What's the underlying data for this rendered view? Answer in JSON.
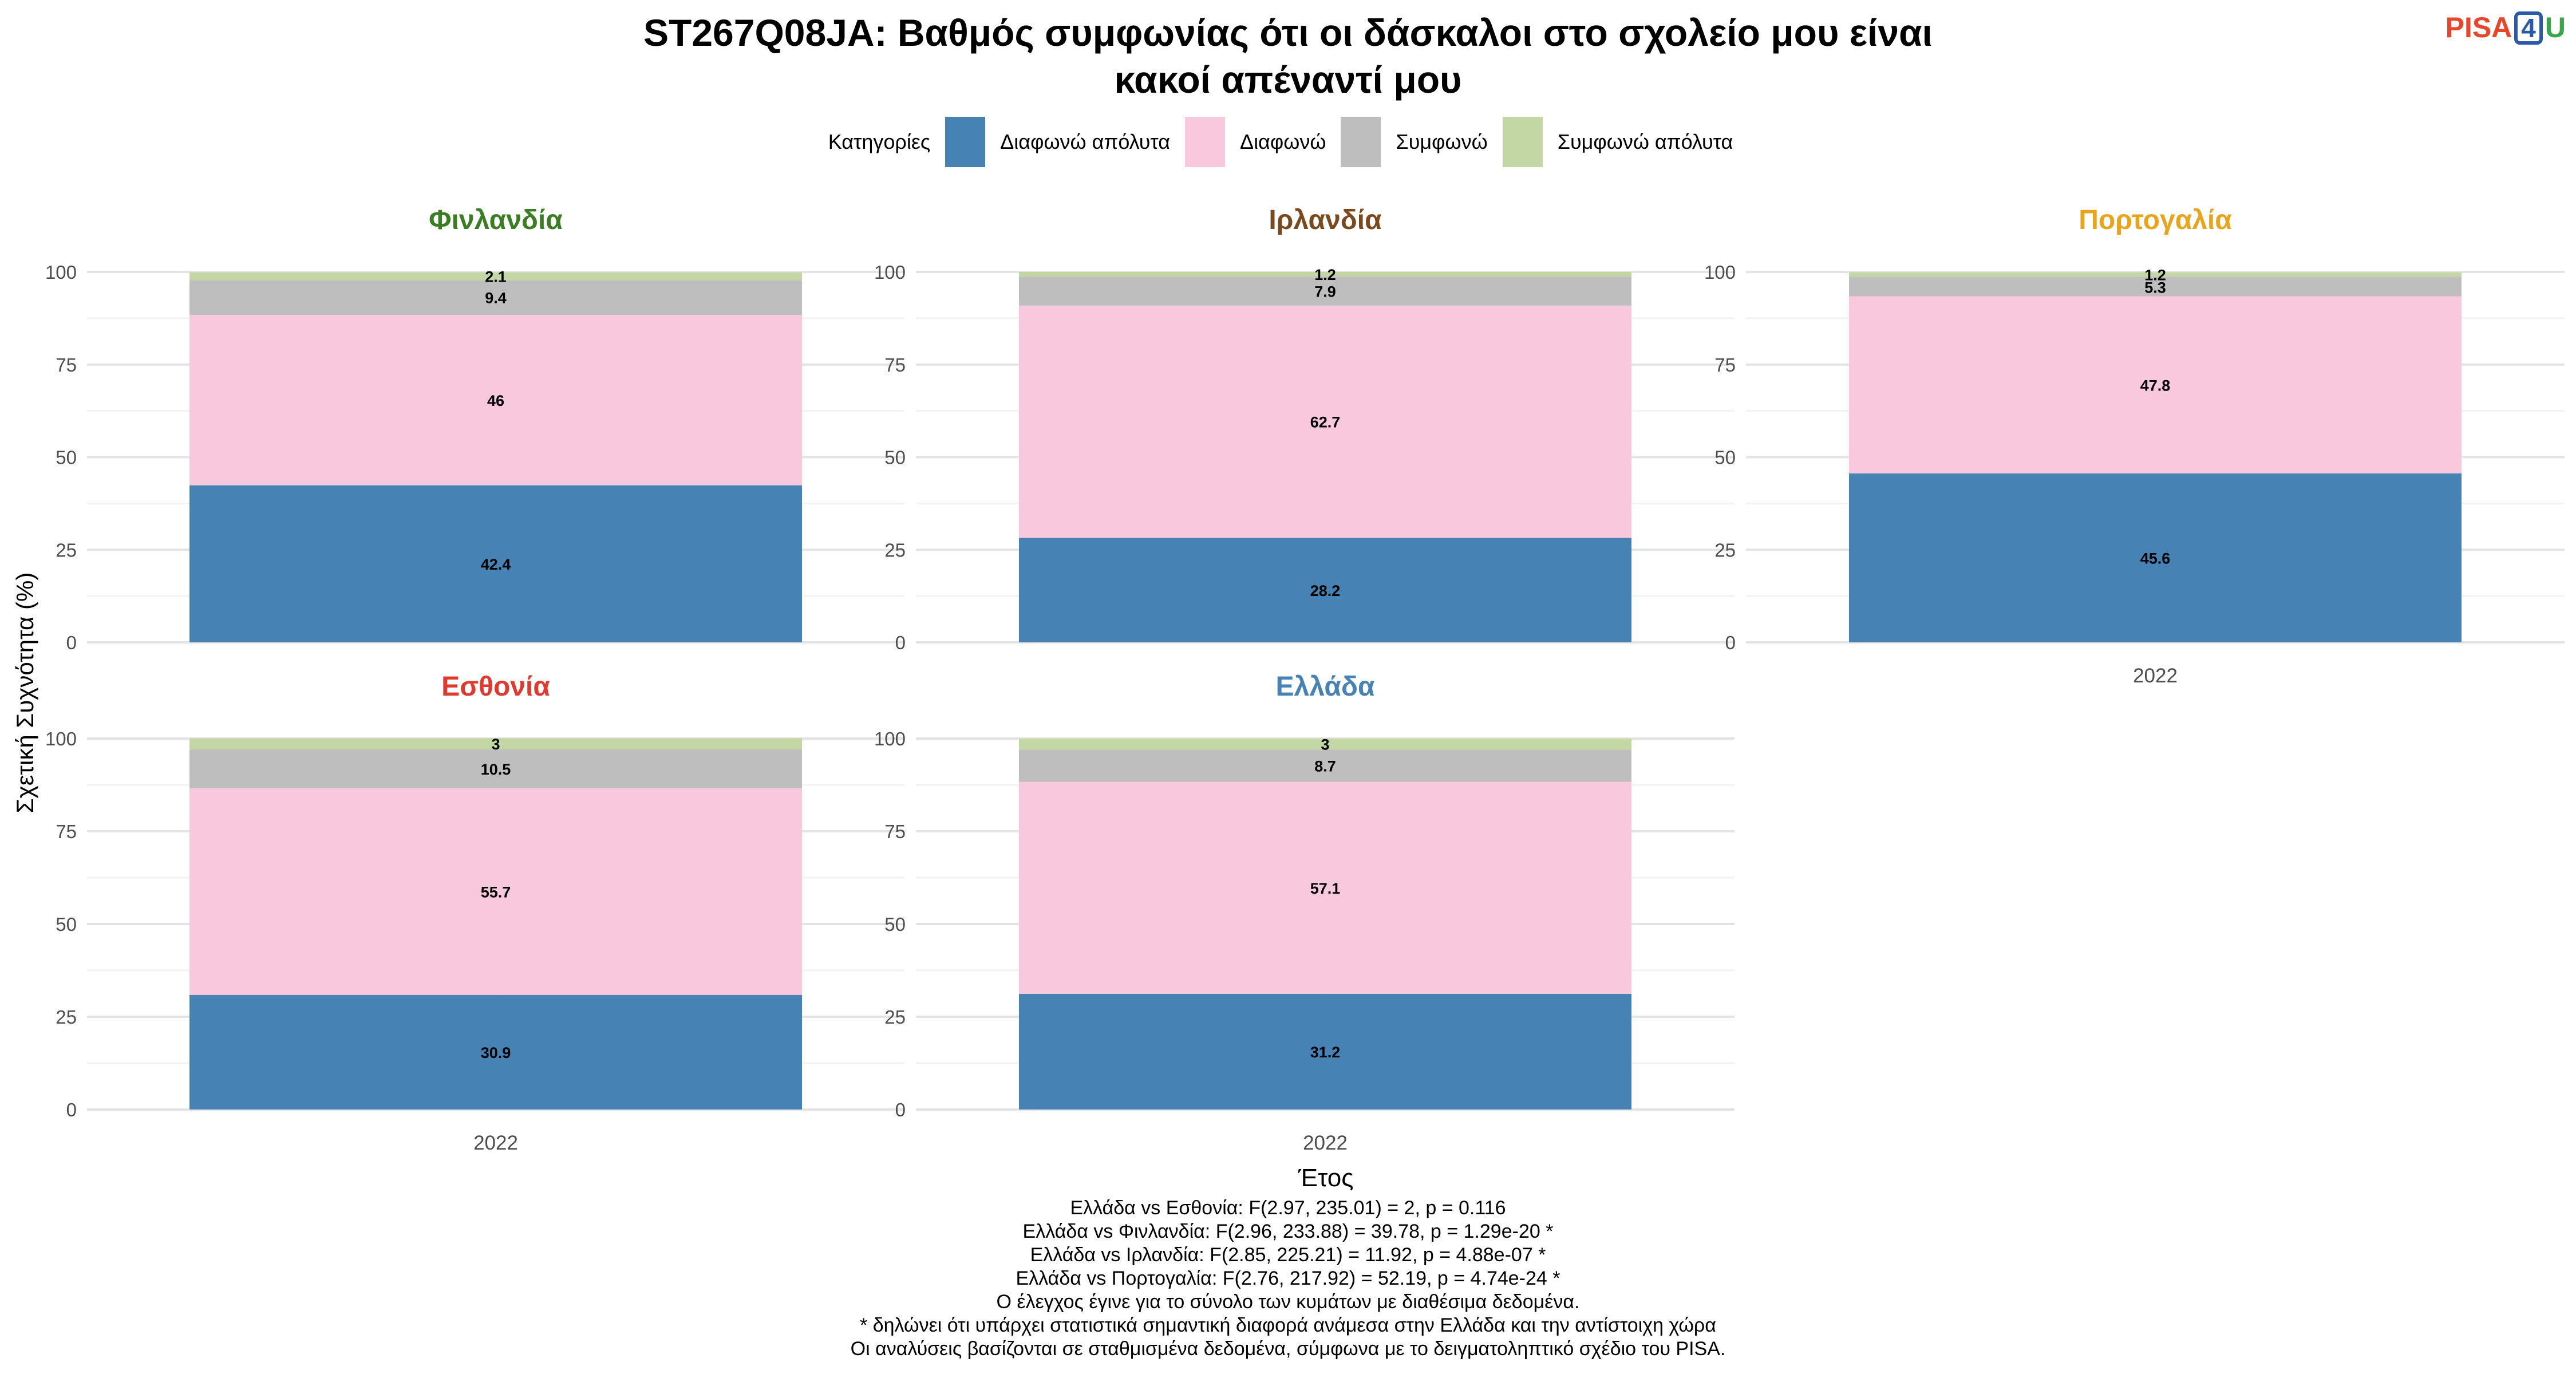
{
  "title_lines": [
    "ST267Q08JA: Βαθμός συμφωνίας ότι οι δάσκαλοι στο σχολείο μου είναι",
    "κακοί απέναντί μου"
  ],
  "logo": {
    "pisa": "PISA",
    "four": "4",
    "u": "U"
  },
  "legend": {
    "title": "Κατηγορίες",
    "items": [
      {
        "label": "Διαφωνώ απόλυτα",
        "color": "#4682b4"
      },
      {
        "label": "Διαφωνώ",
        "color": "#f8c8dc"
      },
      {
        "label": "Συμφωνώ",
        "color": "#bebebe"
      },
      {
        "label": "Συμφωνώ απόλυτα",
        "color": "#c3d7a4"
      }
    ]
  },
  "axes": {
    "ylabel": "Σχετική Συχνότητα (%)",
    "xlabel": "Έτος"
  },
  "chart_data": {
    "type": "bar",
    "stacked": true,
    "ylim": [
      0,
      100
    ],
    "yticks": [
      0,
      25,
      50,
      75,
      100
    ],
    "grid": true,
    "legend_position": "top",
    "series_names": [
      "Διαφωνώ απόλυτα",
      "Διαφωνώ",
      "Συμφωνώ",
      "Συμφωνώ απόλυτα"
    ],
    "panels": [
      {
        "name": "Φινλανδία",
        "title_color": "#3a7d22",
        "x": "2022",
        "values": [
          42.4,
          46,
          9.4,
          2.1
        ],
        "show_x_tick": false
      },
      {
        "name": "Ιρλανδία",
        "title_color": "#7a4a1e",
        "x": "2022",
        "values": [
          28.2,
          62.7,
          7.9,
          1.2
        ],
        "show_x_tick": false
      },
      {
        "name": "Πορτογαλία",
        "title_color": "#e8a51b",
        "x": "2022",
        "values": [
          45.6,
          47.8,
          5.3,
          1.2
        ],
        "show_x_tick": true
      },
      {
        "name": "Εσθονία",
        "title_color": "#e03a2e",
        "x": "2022",
        "values": [
          30.9,
          55.7,
          10.5,
          3
        ],
        "show_x_tick": true
      },
      {
        "name": "Ελλάδα",
        "title_color": "#4682b4",
        "x": "2022",
        "values": [
          31.2,
          57.1,
          8.7,
          3
        ],
        "show_x_tick": true
      }
    ]
  },
  "notes": [
    "Ελλάδα vs Εσθονία: F(2.97, 235.01) = 2, p = 0.116",
    "Ελλάδα vs Φινλανδία: F(2.96, 233.88) = 39.78, p = 1.29e-20 *",
    "Ελλάδα vs Ιρλανδία: F(2.85, 225.21) = 11.92, p = 4.88e-07 *",
    "Ελλάδα vs Πορτογαλία: F(2.76, 217.92) = 52.19, p = 4.74e-24 *",
    "Ο έλεγχος έγινε για το σύνολο των κυμάτων με διαθέσιμα δεδομένα.",
    "* δηλώνει ότι υπάρχει στατιστικά σημαντική διαφορά ανάμεσα στην Ελλάδα και την αντίστοιχη χώρα",
    "Οι αναλύσεις βασίζονται σε σταθμισμένα δεδομένα, σύμφωνα με το δειγματοληπτικό σχέδιο του PISA."
  ]
}
